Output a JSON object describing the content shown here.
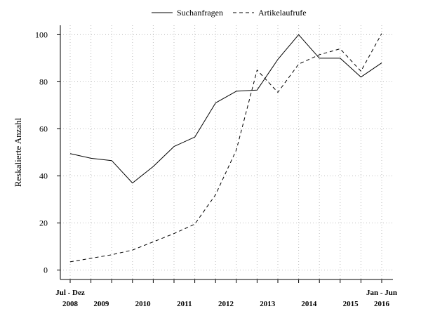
{
  "chart_data": {
    "type": "line",
    "ylabel": "Reskalierte Anzahl",
    "xlabel": "",
    "ylim": [
      -4,
      104
    ],
    "yticks": [
      0,
      20,
      40,
      60,
      80,
      100
    ],
    "grid": true,
    "legend_position": "top",
    "x_periods": [
      "H2 2008",
      "H1 2009",
      "H2 2009",
      "H1 2010",
      "H2 2010",
      "H1 2011",
      "H2 2011",
      "H1 2012",
      "H2 2012",
      "H1 2013",
      "H2 2013",
      "H1 2014",
      "H2 2014",
      "H1 2015",
      "H2 2015",
      "H1 2016"
    ],
    "x_tick_labels": [
      {
        "index": 0,
        "top": "Jul - Dez",
        "bottom": "2008"
      },
      {
        "index": 1.5,
        "top": "",
        "bottom": "2009"
      },
      {
        "index": 3.5,
        "top": "",
        "bottom": "2010"
      },
      {
        "index": 5.5,
        "top": "",
        "bottom": "2011"
      },
      {
        "index": 7.5,
        "top": "",
        "bottom": "2012"
      },
      {
        "index": 9.5,
        "top": "",
        "bottom": "2013"
      },
      {
        "index": 11.5,
        "top": "",
        "bottom": "2014"
      },
      {
        "index": 13.5,
        "top": "",
        "bottom": "2015"
      },
      {
        "index": 15,
        "top": "Jan - Jun",
        "bottom": "2016"
      }
    ],
    "series": [
      {
        "name": "Suchanfragen",
        "dash": "solid",
        "values": [
          49.5,
          47.5,
          46.5,
          37,
          44,
          52.5,
          56.5,
          71,
          76,
          76.5,
          89.5,
          100,
          90,
          90,
          82,
          88
        ]
      },
      {
        "name": "Artikelaufrufe",
        "dash": "dashed",
        "values": [
          3.5,
          5,
          6.5,
          8.5,
          12,
          15.5,
          19.5,
          32,
          51,
          85,
          75.5,
          87.5,
          91.5,
          94,
          84.5,
          100.5
        ]
      }
    ]
  }
}
